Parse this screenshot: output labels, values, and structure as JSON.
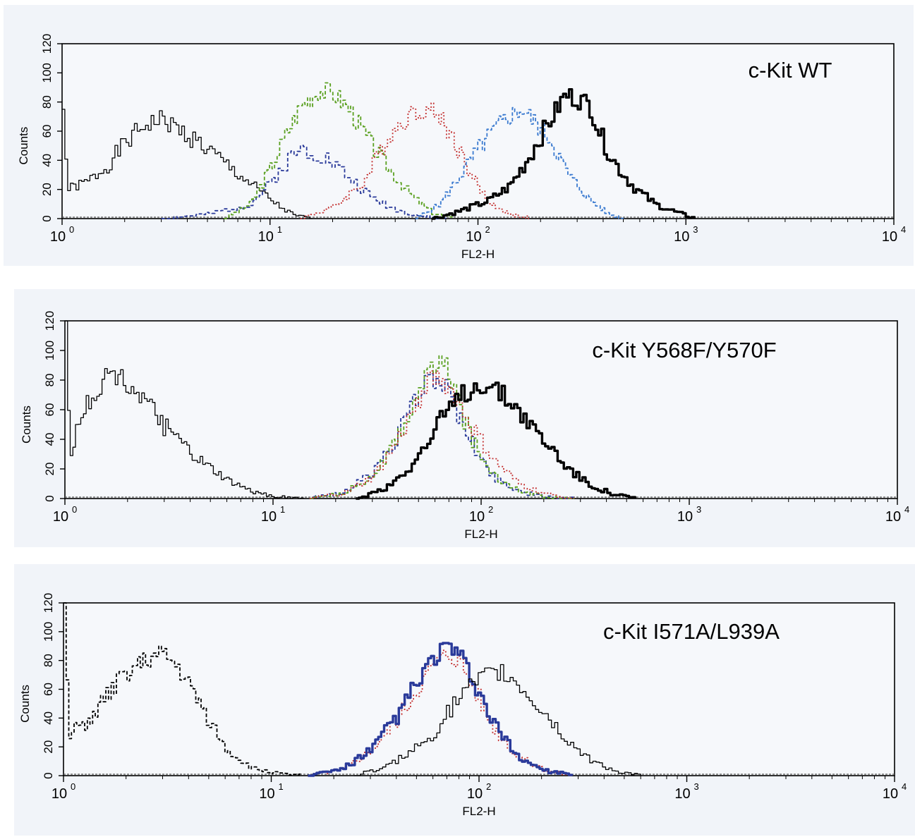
{
  "chart_data": [
    {
      "type": "line",
      "title": "c-Kit WT",
      "xlabel": "FL2-H",
      "ylabel": "Counts",
      "x_scale": "log10",
      "xlim": [
        1,
        10000
      ],
      "ylim": [
        0,
        120
      ],
      "x_ticks": [
        {
          "base": "10",
          "exp": "0"
        },
        {
          "base": "10",
          "exp": "1"
        },
        {
          "base": "10",
          "exp": "2"
        },
        {
          "base": "10",
          "exp": "3"
        },
        {
          "base": "10",
          "exp": "4"
        }
      ],
      "y_ticks": [
        "0",
        "20",
        "40",
        "60",
        "80",
        "100",
        "120"
      ],
      "series": [
        {
          "color": "#000000",
          "style": "thin",
          "points": [
            [
              1.0,
              75
            ],
            [
              1.05,
              20
            ],
            [
              1.3,
              25
            ],
            [
              1.6,
              35
            ],
            [
              2.0,
              52
            ],
            [
              2.5,
              65
            ],
            [
              3.0,
              68
            ],
            [
              3.5,
              62
            ],
            [
              4.5,
              52
            ],
            [
              5.5,
              42
            ],
            [
              7,
              30
            ],
            [
              9,
              18
            ],
            [
              11,
              8
            ],
            [
              13,
              2
            ],
            [
              16,
              0
            ]
          ]
        },
        {
          "color": "#2a3a9a",
          "style": "dashed",
          "points": [
            [
              3,
              0
            ],
            [
              5,
              3
            ],
            [
              8,
              10
            ],
            [
              10,
              25
            ],
            [
              12,
              40
            ],
            [
              14,
              48
            ],
            [
              17,
              45
            ],
            [
              20,
              38
            ],
            [
              25,
              25
            ],
            [
              30,
              15
            ],
            [
              40,
              6
            ],
            [
              55,
              1
            ],
            [
              70,
              0
            ]
          ]
        },
        {
          "color": "#5aa020",
          "style": "dashed",
          "points": [
            [
              6,
              0
            ],
            [
              8,
              10
            ],
            [
              10,
              35
            ],
            [
              12,
              60
            ],
            [
              14,
              78
            ],
            [
              17,
              88
            ],
            [
              20,
              86
            ],
            [
              24,
              75
            ],
            [
              30,
              52
            ],
            [
              38,
              32
            ],
            [
              48,
              15
            ],
            [
              60,
              4
            ],
            [
              75,
              0
            ]
          ]
        },
        {
          "color": "#c43030",
          "style": "dotted",
          "points": [
            [
              14,
              0
            ],
            [
              20,
              8
            ],
            [
              28,
              25
            ],
            [
              36,
              55
            ],
            [
              45,
              70
            ],
            [
              55,
              76
            ],
            [
              65,
              70
            ],
            [
              75,
              55
            ],
            [
              90,
              32
            ],
            [
              110,
              12
            ],
            [
              140,
              3
            ],
            [
              180,
              0
            ]
          ]
        },
        {
          "color": "#3a7ad0",
          "style": "dashed",
          "points": [
            [
              50,
              0
            ],
            [
              65,
              10
            ],
            [
              80,
              28
            ],
            [
              100,
              48
            ],
            [
              120,
              62
            ],
            [
              140,
              70
            ],
            [
              160,
              75
            ],
            [
              180,
              68
            ],
            [
              220,
              55
            ],
            [
              270,
              30
            ],
            [
              330,
              15
            ],
            [
              420,
              3
            ],
            [
              500,
              0
            ]
          ]
        },
        {
          "color": "#000000",
          "style": "thick",
          "points": [
            [
              60,
              0
            ],
            [
              80,
              5
            ],
            [
              110,
              12
            ],
            [
              140,
              22
            ],
            [
              170,
              40
            ],
            [
              200,
              58
            ],
            [
              230,
              72
            ],
            [
              260,
              85
            ],
            [
              300,
              82
            ],
            [
              340,
              78
            ],
            [
              390,
              55
            ],
            [
              450,
              38
            ],
            [
              550,
              22
            ],
            [
              700,
              10
            ],
            [
              900,
              4
            ],
            [
              1100,
              0
            ]
          ]
        }
      ]
    },
    {
      "type": "line",
      "title": "c-Kit Y568F/Y570F",
      "xlabel": "FL2-H",
      "ylabel": "Counts",
      "x_scale": "log10",
      "xlim": [
        1,
        10000
      ],
      "ylim": [
        0,
        120
      ],
      "x_ticks": [
        {
          "base": "10",
          "exp": "0"
        },
        {
          "base": "10",
          "exp": "1"
        },
        {
          "base": "10",
          "exp": "2"
        },
        {
          "base": "10",
          "exp": "3"
        },
        {
          "base": "10",
          "exp": "4"
        }
      ],
      "y_ticks": [
        "0",
        "20",
        "40",
        "60",
        "80",
        "100",
        "120"
      ],
      "series": [
        {
          "color": "#000000",
          "style": "thin",
          "points": [
            [
              1.0,
              120
            ],
            [
              1.05,
              30
            ],
            [
              1.2,
              60
            ],
            [
              1.4,
              72
            ],
            [
              1.6,
              85
            ],
            [
              1.8,
              82
            ],
            [
              2.1,
              75
            ],
            [
              2.5,
              62
            ],
            [
              3.0,
              48
            ],
            [
              3.5,
              38
            ],
            [
              4.5,
              24
            ],
            [
              6,
              12
            ],
            [
              8,
              4
            ],
            [
              11,
              1
            ],
            [
              14,
              0
            ]
          ]
        },
        {
          "color": "#2a3a9a",
          "style": "dashed",
          "points": [
            [
              15,
              0
            ],
            [
              22,
              5
            ],
            [
              30,
              18
            ],
            [
              38,
              40
            ],
            [
              46,
              62
            ],
            [
              54,
              80
            ],
            [
              62,
              82
            ],
            [
              70,
              70
            ],
            [
              80,
              50
            ],
            [
              95,
              30
            ],
            [
              115,
              14
            ],
            [
              150,
              5
            ],
            [
              200,
              1
            ],
            [
              280,
              0
            ]
          ]
        },
        {
          "color": "#5aa020",
          "style": "dashed",
          "points": [
            [
              15,
              0
            ],
            [
              22,
              4
            ],
            [
              30,
              16
            ],
            [
              38,
              38
            ],
            [
              46,
              62
            ],
            [
              54,
              82
            ],
            [
              62,
              95
            ],
            [
              70,
              84
            ],
            [
              80,
              56
            ],
            [
              95,
              32
            ],
            [
              115,
              15
            ],
            [
              150,
              6
            ],
            [
              200,
              1
            ],
            [
              280,
              0
            ]
          ]
        },
        {
          "color": "#c43030",
          "style": "dotted",
          "points": [
            [
              15,
              0
            ],
            [
              22,
              4
            ],
            [
              30,
              15
            ],
            [
              38,
              36
            ],
            [
              46,
              58
            ],
            [
              54,
              78
            ],
            [
              62,
              82
            ],
            [
              70,
              74
            ],
            [
              80,
              60
            ],
            [
              95,
              42
            ],
            [
              115,
              25
            ],
            [
              150,
              10
            ],
            [
              200,
              3
            ],
            [
              280,
              0
            ]
          ]
        },
        {
          "color": "#000000",
          "style": "thick",
          "points": [
            [
              25,
              0
            ],
            [
              35,
              8
            ],
            [
              45,
              22
            ],
            [
              55,
              38
            ],
            [
              65,
              55
            ],
            [
              80,
              70
            ],
            [
              100,
              78
            ],
            [
              120,
              72
            ],
            [
              150,
              60
            ],
            [
              180,
              45
            ],
            [
              220,
              32
            ],
            [
              260,
              20
            ],
            [
              320,
              10
            ],
            [
              420,
              3
            ],
            [
              550,
              0
            ]
          ]
        }
      ]
    },
    {
      "type": "line",
      "title": "c-Kit I571A/L939A",
      "xlabel": "FL2-H",
      "ylabel": "Counts",
      "x_scale": "log10",
      "xlim": [
        1,
        10000
      ],
      "ylim": [
        0,
        120
      ],
      "x_ticks": [
        {
          "base": "10",
          "exp": "0"
        },
        {
          "base": "10",
          "exp": "1"
        },
        {
          "base": "10",
          "exp": "2"
        },
        {
          "base": "10",
          "exp": "3"
        },
        {
          "base": "10",
          "exp": "4"
        }
      ],
      "y_ticks": [
        "0",
        "20",
        "40",
        "60",
        "80",
        "100",
        "120"
      ],
      "series": [
        {
          "color": "#000000",
          "style": "dashed",
          "points": [
            [
              1.0,
              120
            ],
            [
              1.05,
              30
            ],
            [
              1.3,
              38
            ],
            [
              1.6,
              55
            ],
            [
              2.0,
              72
            ],
            [
              2.5,
              80
            ],
            [
              3.0,
              84
            ],
            [
              3.5,
              75
            ],
            [
              4.0,
              62
            ],
            [
              5,
              38
            ],
            [
              6,
              18
            ],
            [
              8,
              5
            ],
            [
              11,
              1
            ],
            [
              14,
              0
            ]
          ]
        },
        {
          "color": "#c43030",
          "style": "dotted",
          "points": [
            [
              15,
              0
            ],
            [
              22,
              5
            ],
            [
              30,
              18
            ],
            [
              40,
              40
            ],
            [
              50,
              62
            ],
            [
              60,
              78
            ],
            [
              70,
              86
            ],
            [
              80,
              80
            ],
            [
              95,
              60
            ],
            [
              115,
              35
            ],
            [
              150,
              14
            ],
            [
              200,
              4
            ],
            [
              280,
              0
            ]
          ]
        },
        {
          "color": "#2a3a9a",
          "style": "thick",
          "points": [
            [
              15,
              0
            ],
            [
              22,
              5
            ],
            [
              30,
              18
            ],
            [
              40,
              42
            ],
            [
              50,
              65
            ],
            [
              60,
              82
            ],
            [
              70,
              90
            ],
            [
              80,
              82
            ],
            [
              95,
              62
            ],
            [
              115,
              36
            ],
            [
              150,
              14
            ],
            [
              200,
              4
            ],
            [
              280,
              0
            ]
          ]
        },
        {
          "color": "#000000",
          "style": "thin",
          "points": [
            [
              25,
              0
            ],
            [
              35,
              6
            ],
            [
              45,
              15
            ],
            [
              60,
              30
            ],
            [
              75,
              50
            ],
            [
              90,
              62
            ],
            [
              110,
              70
            ],
            [
              130,
              72
            ],
            [
              160,
              60
            ],
            [
              200,
              45
            ],
            [
              260,
              25
            ],
            [
              330,
              12
            ],
            [
              450,
              3
            ],
            [
              600,
              0
            ]
          ]
        }
      ]
    }
  ]
}
